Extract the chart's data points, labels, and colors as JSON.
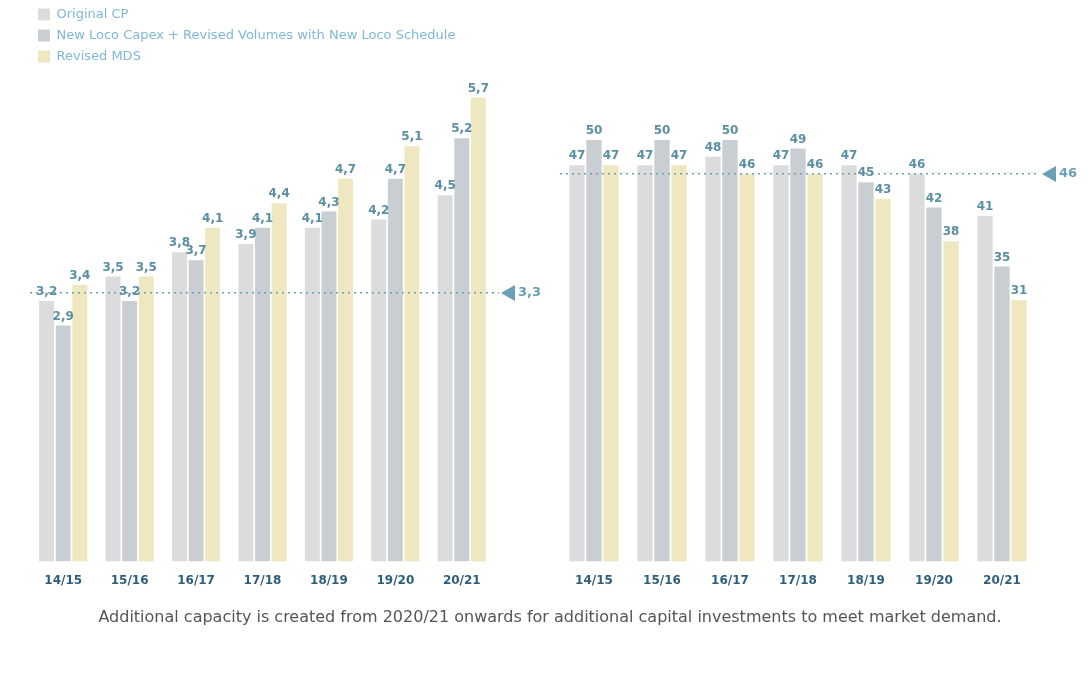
{
  "chart_data": [
    {
      "type": "bar",
      "categories": [
        "14/15",
        "15/16",
        "16/17",
        "17/18",
        "18/19",
        "19/20",
        "20/21"
      ],
      "series": [
        {
          "name": "Original CP",
          "color": "#dcdcdc",
          "values": [
            3.2,
            3.5,
            3.8,
            3.9,
            4.1,
            4.2,
            4.5
          ],
          "value_labels": [
            "3,2",
            "3,5",
            "3,8",
            "3,9",
            "4,1",
            "4,2",
            "4,5"
          ]
        },
        {
          "name": "New Loco Capex + Revised Volumes with New Loco Schedule",
          "color": "#c9ced3",
          "values": [
            2.9,
            3.2,
            3.7,
            4.1,
            4.3,
            4.7,
            5.2
          ],
          "value_labels": [
            "2,9",
            "3,2",
            "3,7",
            "4,1",
            "4,3",
            "4,7",
            "5,2"
          ]
        },
        {
          "name": "Revised MDS",
          "color": "#efe7bf",
          "values": [
            3.4,
            3.5,
            4.1,
            4.4,
            4.7,
            5.1,
            5.7
          ],
          "value_labels": [
            "3,4",
            "3,5",
            "4,1",
            "4,4",
            "4,7",
            "5,1",
            "5,7"
          ]
        }
      ],
      "legend": "top left",
      "grid": false,
      "ref_lines": [
        {
          "axis": "y",
          "value": 3.3,
          "label": "3,3",
          "color": "#6a9fb5",
          "line_style": "dotted"
        }
      ],
      "annotations": [
        "Additional capacity is created from 2020/21 onwards for additional capital investments to meet market demand."
      ]
    },
    {
      "type": "bar",
      "categories": [
        "14/15",
        "15/16",
        "16/17",
        "17/18",
        "18/19",
        "19/20",
        "20/21"
      ],
      "series": [
        {
          "color": "#dcdcdc",
          "values": [
            47,
            47,
            48,
            47,
            47,
            46,
            41
          ],
          "value_labels": [
            "47",
            "47",
            "48",
            "47",
            "47",
            "46",
            "41"
          ]
        },
        {
          "color": "#c9ced3",
          "values": [
            50,
            50,
            50,
            49,
            45,
            42,
            35
          ],
          "value_labels": [
            "50",
            "50",
            "50",
            "49",
            "45",
            "42",
            "35"
          ]
        },
        {
          "color": "#efe7bf",
          "values": [
            47,
            47,
            46,
            46,
            43,
            38,
            31
          ],
          "value_labels": [
            "47",
            "47",
            "46",
            "46",
            "43",
            "38",
            "31"
          ]
        }
      ],
      "legend": false,
      "grid": false,
      "ref_lines": [
        {
          "axis": "y",
          "value": 46,
          "label": "46",
          "color": "#6a9fb5",
          "line_style": "dotted"
        }
      ]
    }
  ]
}
